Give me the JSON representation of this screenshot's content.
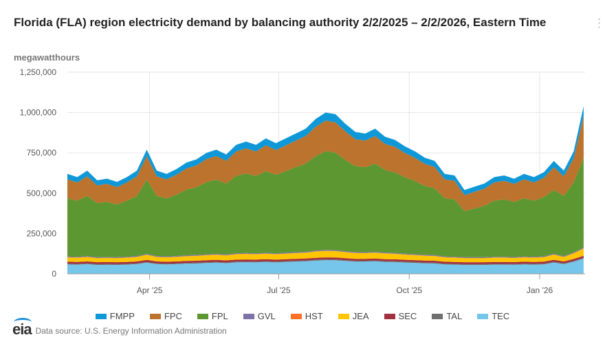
{
  "chart_data": {
    "type": "area",
    "stacked": true,
    "title": "Florida (FLA) region electricity demand by balancing authority 2/2/2025 – 2/2/2026, Eastern Time",
    "ylabel": "megawatthours",
    "xlabel": "",
    "ylim": [
      0,
      1250000
    ],
    "xlim": [
      "2025-02-02",
      "2026-02-02"
    ],
    "y_ticks": [
      {
        "value": 0,
        "label": "0"
      },
      {
        "value": 250000,
        "label": "250,000"
      },
      {
        "value": 500000,
        "label": "500,000"
      },
      {
        "value": 750000,
        "label": "750,000"
      },
      {
        "value": 1000000,
        "label": "1,000,000"
      },
      {
        "value": 1250000,
        "label": "1,250,000"
      }
    ],
    "x_ticks": [
      {
        "date": "2025-04-01",
        "label": "Apr '25"
      },
      {
        "date": "2025-07-01",
        "label": "Jul '25"
      },
      {
        "date": "2025-10-01",
        "label": "Oct '25"
      },
      {
        "date": "2026-01-01",
        "label": "Jan '26"
      }
    ],
    "grid": true,
    "legend_position": "bottom",
    "x": [
      "2025-02-02",
      "2025-02-09",
      "2025-02-16",
      "2025-02-23",
      "2025-03-02",
      "2025-03-09",
      "2025-03-16",
      "2025-03-23",
      "2025-03-30",
      "2025-04-06",
      "2025-04-13",
      "2025-04-20",
      "2025-04-27",
      "2025-05-04",
      "2025-05-11",
      "2025-05-18",
      "2025-05-25",
      "2025-06-01",
      "2025-06-08",
      "2025-06-15",
      "2025-06-22",
      "2025-06-29",
      "2025-07-06",
      "2025-07-13",
      "2025-07-20",
      "2025-07-27",
      "2025-08-03",
      "2025-08-10",
      "2025-08-17",
      "2025-08-24",
      "2025-08-31",
      "2025-09-07",
      "2025-09-14",
      "2025-09-21",
      "2025-09-28",
      "2025-10-05",
      "2025-10-12",
      "2025-10-19",
      "2025-10-26",
      "2025-11-02",
      "2025-11-09",
      "2025-11-16",
      "2025-11-23",
      "2025-11-30",
      "2025-12-07",
      "2025-12-14",
      "2025-12-21",
      "2025-12-28",
      "2026-01-04",
      "2026-01-11",
      "2026-01-18",
      "2026-01-25",
      "2026-02-01"
    ],
    "series": [
      {
        "name": "TEC",
        "color": "#75c6ea",
        "values": [
          58000,
          57000,
          60000,
          55000,
          56000,
          55000,
          57000,
          60000,
          69000,
          60000,
          58000,
          60000,
          63000,
          64000,
          67000,
          69000,
          66000,
          71000,
          72000,
          71000,
          74000,
          71000,
          74000,
          76000,
          78000,
          82000,
          85000,
          84000,
          80000,
          76000,
          76000,
          78000,
          74000,
          73000,
          70000,
          68000,
          65000,
          64000,
          58000,
          57000,
          55000,
          55000,
          55000,
          57000,
          57000,
          56000,
          58000,
          57000,
          59000,
          70000,
          60000,
          75000,
          95000
        ]
      },
      {
        "name": "TAL",
        "color": "#6f6f6f",
        "values": [
          5000,
          5000,
          5000,
          5000,
          5000,
          5000,
          5000,
          5000,
          5000,
          5000,
          5000,
          5000,
          5000,
          5000,
          5000,
          5000,
          5000,
          5000,
          5000,
          5000,
          5000,
          5000,
          5000,
          5000,
          5000,
          5000,
          5000,
          5000,
          5000,
          5000,
          5000,
          5000,
          5000,
          5000,
          5000,
          5000,
          5000,
          5000,
          5000,
          5000,
          5000,
          5000,
          5000,
          5000,
          5000,
          5000,
          5000,
          5000,
          5000,
          5000,
          5000,
          5000,
          5000
        ]
      },
      {
        "name": "SEC",
        "color": "#a13040",
        "values": [
          12000,
          12000,
          12000,
          12000,
          12000,
          12000,
          12000,
          12000,
          12000,
          12000,
          12000,
          12000,
          12000,
          12000,
          12000,
          12000,
          12000,
          12000,
          12000,
          12000,
          12000,
          12000,
          12000,
          12000,
          12000,
          12000,
          12000,
          12000,
          12000,
          12000,
          12000,
          12000,
          12000,
          12000,
          12000,
          12000,
          12000,
          12000,
          12000,
          12000,
          12000,
          12000,
          12000,
          12000,
          12000,
          12000,
          12000,
          12000,
          12000,
          12000,
          12000,
          12000,
          12000
        ]
      },
      {
        "name": "JEA",
        "color": "#ffc500",
        "values": [
          27000,
          26000,
          27000,
          25000,
          25000,
          25000,
          26000,
          27000,
          32000,
          27000,
          27000,
          28000,
          29000,
          30000,
          31000,
          32000,
          31000,
          33000,
          34000,
          33000,
          34000,
          33000,
          34000,
          35000,
          36000,
          39000,
          40000,
          40000,
          37000,
          36000,
          35000,
          36000,
          35000,
          34000,
          32000,
          31000,
          30000,
          29000,
          27000,
          26000,
          25000,
          25000,
          25000,
          26000,
          26000,
          25000,
          27000,
          26000,
          27000,
          32000,
          27000,
          35000,
          45000
        ]
      },
      {
        "name": "HST",
        "color": "#ff7226",
        "values": [
          1000,
          1000,
          1000,
          1000,
          1000,
          1000,
          1000,
          1000,
          1000,
          1000,
          1000,
          1000,
          1000,
          1000,
          1000,
          1000,
          1000,
          1000,
          1000,
          1000,
          1000,
          1000,
          1000,
          1000,
          1000,
          1000,
          1000,
          1000,
          1000,
          1000,
          1000,
          1000,
          1000,
          1000,
          1000,
          1000,
          1000,
          1000,
          1000,
          1000,
          1000,
          1000,
          1000,
          1000,
          1000,
          1000,
          1000,
          1000,
          1000,
          1000,
          1000,
          1000,
          1000
        ]
      },
      {
        "name": "GVL",
        "color": "#7f72a8",
        "values": [
          5000,
          5000,
          5000,
          5000,
          5000,
          5000,
          5000,
          5000,
          5000,
          5000,
          5000,
          5000,
          5000,
          5000,
          5000,
          5000,
          5000,
          5000,
          5000,
          5000,
          5000,
          5000,
          5000,
          5000,
          5000,
          5000,
          5000,
          5000,
          5000,
          5000,
          5000,
          5000,
          5000,
          5000,
          5000,
          5000,
          5000,
          5000,
          5000,
          5000,
          5000,
          5000,
          5000,
          5000,
          5000,
          5000,
          5000,
          5000,
          5000,
          5000,
          5000,
          5000,
          5000
        ]
      },
      {
        "name": "FPL",
        "color": "#5d9732",
        "values": [
          360000,
          347000,
          373000,
          335000,
          342000,
          327000,
          347000,
          373000,
          460000,
          373000,
          360000,
          380000,
          407000,
          420000,
          447000,
          460000,
          440000,
          480000,
          493000,
          480000,
          506000,
          487000,
          506000,
          527000,
          546000,
          586000,
          612000,
          605000,
          566000,
          533000,
          527000,
          546000,
          512000,
          499000,
          474000,
          454000,
          427000,
          414000,
          360000,
          355000,
          286000,
          302000,
          319000,
          347000,
          355000,
          342000,
          360000,
          347000,
          367000,
          395000,
          373000,
          435000,
          557000
        ]
      },
      {
        "name": "FPC",
        "color": "#bb732d",
        "values": [
          118000,
          114000,
          122000,
          110000,
          112000,
          108000,
          114000,
          122000,
          146000,
          122000,
          118000,
          124000,
          131000,
          135000,
          143000,
          146000,
          141000,
          152000,
          156000,
          152000,
          160000,
          154000,
          160000,
          165000,
          171000,
          182000,
          190000,
          188000,
          177000,
          167000,
          165000,
          171000,
          162000,
          158000,
          150000,
          144000,
          137000,
          133000,
          118000,
          116000,
          99000,
          103000,
          106000,
          114000,
          116000,
          112000,
          118000,
          114000,
          120000,
          140000,
          122000,
          150000,
          260000
        ]
      },
      {
        "name": "FMPP",
        "color": "#0f98d8",
        "values": [
          34000,
          33000,
          35000,
          32000,
          32000,
          32000,
          33000,
          35000,
          40000,
          35000,
          34000,
          35000,
          37000,
          38000,
          39000,
          40000,
          39000,
          41000,
          42000,
          41000,
          43000,
          42000,
          43000,
          44000,
          46000,
          48000,
          50000,
          50000,
          47000,
          45000,
          44000,
          46000,
          44000,
          43000,
          41000,
          40000,
          38000,
          37000,
          34000,
          33000,
          32000,
          32000,
          32000,
          33000,
          33000,
          32000,
          34000,
          33000,
          34000,
          40000,
          35000,
          42000,
          60000
        ]
      }
    ],
    "legend": [
      "FMPP",
      "FPC",
      "FPL",
      "GVL",
      "HST",
      "JEA",
      "SEC",
      "TAL",
      "TEC"
    ]
  },
  "footer": {
    "source": "Data source: U.S. Energy Information Administration",
    "logo": "eia"
  }
}
